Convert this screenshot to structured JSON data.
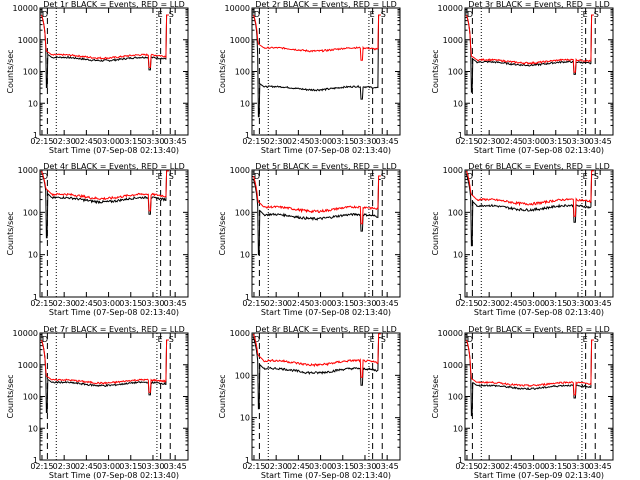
{
  "chart_data": [
    {
      "type": "line",
      "title": "Det 1r BLACK = Events, RED = LLD",
      "ylabel": "Counts/sec",
      "xlabel": "Start Time (07-Sep-08 02:13:40)",
      "yscale": "log",
      "ylim": [
        1,
        10000
      ],
      "yticks": [
        "1",
        "10",
        "100",
        "1000",
        "10000"
      ],
      "xticks": [
        "02:15",
        "02:30",
        "02:45",
        "03:00",
        "03:15",
        "03:30",
        "03:45"
      ],
      "markers": [
        "D",
        "E",
        "S"
      ],
      "series": [
        {
          "color": "#000000",
          "level": 250
        },
        {
          "color": "#ff0000",
          "level": 300
        }
      ]
    },
    {
      "type": "line",
      "title": "Det 2r BLACK = Events, RED = LLD",
      "ylabel": "Counts/sec",
      "xlabel": "Start Time (07-Sep-08 02:13:40)",
      "yscale": "log",
      "ylim": [
        1,
        10000
      ],
      "yticks": [
        "1",
        "10",
        "100",
        "1000",
        "10000"
      ],
      "xticks": [
        "02:15",
        "02:30",
        "02:45",
        "03:00",
        "03:15",
        "03:30",
        "03:45"
      ],
      "markers": [
        "D",
        "E",
        "S"
      ],
      "series": [
        {
          "color": "#000000",
          "level": 30
        },
        {
          "color": "#ff0000",
          "level": 500
        }
      ]
    },
    {
      "type": "line",
      "title": "Det 3r BLACK = Events, RED = LLD",
      "ylabel": "Counts/sec",
      "xlabel": "Start Time (07-Sep-08 02:13:40)",
      "yscale": "log",
      "ylim": [
        1,
        10000
      ],
      "yticks": [
        "1",
        "10",
        "100",
        "1000",
        "10000"
      ],
      "xticks": [
        "02:15",
        "02:30",
        "02:45",
        "03:00",
        "03:15",
        "03:30",
        "03:45"
      ],
      "markers": [
        "D",
        "E",
        "S"
      ],
      "series": [
        {
          "color": "#000000",
          "level": 180
        },
        {
          "color": "#ff0000",
          "level": 210
        }
      ]
    },
    {
      "type": "line",
      "title": "Det 4r BLACK = Events, RED = LLD",
      "ylabel": "Counts/sec",
      "xlabel": "Start Time (07-Sep-08 02:13:40)",
      "yscale": "log",
      "ylim": [
        1,
        1000
      ],
      "yticks": [
        "1",
        "10",
        "100",
        "1000"
      ],
      "xticks": [
        "02:15",
        "02:30",
        "02:45",
        "03:00",
        "03:15",
        "03:30",
        "03:45"
      ],
      "markers": [
        "D",
        "E",
        "S"
      ],
      "series": [
        {
          "color": "#000000",
          "level": 200
        },
        {
          "color": "#ff0000",
          "level": 240
        }
      ]
    },
    {
      "type": "line",
      "title": "Det 5r BLACK = Events, RED = LLD",
      "ylabel": "Counts/sec",
      "xlabel": "Start Time (07-Sep-08 02:13:40)",
      "yscale": "log",
      "ylim": [
        1,
        1000
      ],
      "yticks": [
        "1",
        "10",
        "100",
        "1000"
      ],
      "xticks": [
        "02:15",
        "02:30",
        "02:45",
        "03:00",
        "03:15",
        "03:30",
        "03:45"
      ],
      "markers": [
        "D",
        "E",
        "S"
      ],
      "series": [
        {
          "color": "#000000",
          "level": 80
        },
        {
          "color": "#ff0000",
          "level": 120
        }
      ]
    },
    {
      "type": "line",
      "title": "Det 6r BLACK = Events, RED = LLD",
      "ylabel": "Counts/sec",
      "xlabel": "Start Time (07-Sep-08 02:13:40)",
      "yscale": "log",
      "ylim": [
        1,
        1000
      ],
      "yticks": [
        "1",
        "10",
        "100",
        "1000"
      ],
      "xticks": [
        "02:15",
        "02:30",
        "02:45",
        "03:00",
        "03:15",
        "03:30",
        "03:45"
      ],
      "markers": [
        "D",
        "E",
        "S"
      ],
      "series": [
        {
          "color": "#000000",
          "level": 130
        },
        {
          "color": "#ff0000",
          "level": 180
        }
      ]
    },
    {
      "type": "line",
      "title": "Det 7r BLACK = Events, RED = LLD",
      "ylabel": "Counts/sec",
      "xlabel": "Start Time (07-Sep-08 02:13:40)",
      "yscale": "log",
      "ylim": [
        1,
        10000
      ],
      "yticks": [
        "1",
        "10",
        "100",
        "1000",
        "10000"
      ],
      "xticks": [
        "02:15",
        "02:30",
        "02:45",
        "03:00",
        "03:15",
        "03:30",
        "03:45"
      ],
      "markers": [
        "D",
        "E",
        "S"
      ],
      "series": [
        {
          "color": "#000000",
          "level": 250
        },
        {
          "color": "#ff0000",
          "level": 300
        }
      ]
    },
    {
      "type": "line",
      "title": "Det 8r BLACK = Events, RED = LLD",
      "ylabel": "Counts/sec",
      "xlabel": "Start Time (07-Sep-08 02:13:40)",
      "yscale": "log",
      "ylim": [
        1,
        1000
      ],
      "yticks": [
        "1",
        "10",
        "100",
        "1000"
      ],
      "xticks": [
        "02:15",
        "02:30",
        "02:45",
        "03:00",
        "03:15",
        "03:30",
        "03:45"
      ],
      "markers": [
        "D",
        "E",
        "S"
      ],
      "series": [
        {
          "color": "#000000",
          "level": 130
        },
        {
          "color": "#ff0000",
          "level": 200
        }
      ]
    },
    {
      "type": "line",
      "title": "Det 9r BLACK = Events, RED = LLD",
      "ylabel": "Counts/sec",
      "xlabel": "Start Time (07-Sep-09 02:13:40)",
      "yscale": "log",
      "ylim": [
        1,
        10000
      ],
      "yticks": [
        "1",
        "10",
        "100",
        "1000",
        "10000"
      ],
      "xticks": [
        "02:15",
        "02:30",
        "02:45",
        "03:00",
        "03:15",
        "03:30",
        "03:45"
      ],
      "markers": [
        "D",
        "E",
        "S"
      ],
      "series": [
        {
          "color": "#000000",
          "level": 200
        },
        {
          "color": "#ff0000",
          "level": 250
        }
      ]
    }
  ]
}
